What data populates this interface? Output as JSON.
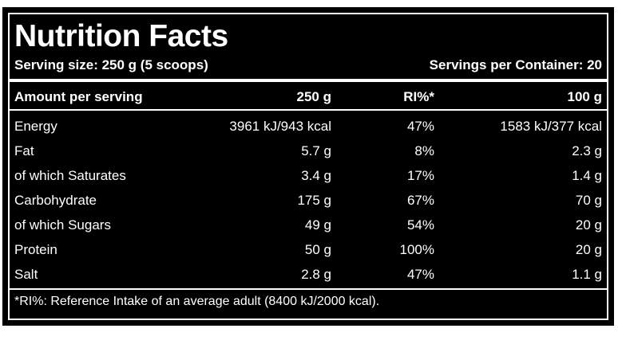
{
  "title": "Nutrition Facts",
  "serving_size": "Serving size: 250 g (5 scoops)",
  "servings_per_container": "Servings per Container: 20",
  "header": {
    "amount": "Amount per serving",
    "per_serving": "250 g",
    "ri": "RI%*",
    "per_100": "100 g"
  },
  "rows": [
    {
      "name": "Energy",
      "per_serving": "3961 kJ/943 kcal",
      "ri": "47%",
      "per_100": "1583 kJ/377 kcal"
    },
    {
      "name": "Fat",
      "per_serving": "5.7 g",
      "ri": "8%",
      "per_100": "2.3 g"
    },
    {
      "name": "of which Saturates",
      "per_serving": "3.4 g",
      "ri": "17%",
      "per_100": "1.4 g"
    },
    {
      "name": "Carbohydrate",
      "per_serving": "175 g",
      "ri": "67%",
      "per_100": "70 g"
    },
    {
      "name": "of which Sugars",
      "per_serving": "49 g",
      "ri": "54%",
      "per_100": "20 g"
    },
    {
      "name": "Protein",
      "per_serving": "50 g",
      "ri": "100%",
      "per_100": "20 g"
    },
    {
      "name": "Salt",
      "per_serving": "2.8 g",
      "ri": "47%",
      "per_100": "1.1 g"
    }
  ],
  "footnote": "*RI%: Reference Intake of an average adult (8400 kJ/2000 kcal).",
  "colors": {
    "background": "#000000",
    "text": "#ffffff",
    "page": "#ffffff"
  }
}
